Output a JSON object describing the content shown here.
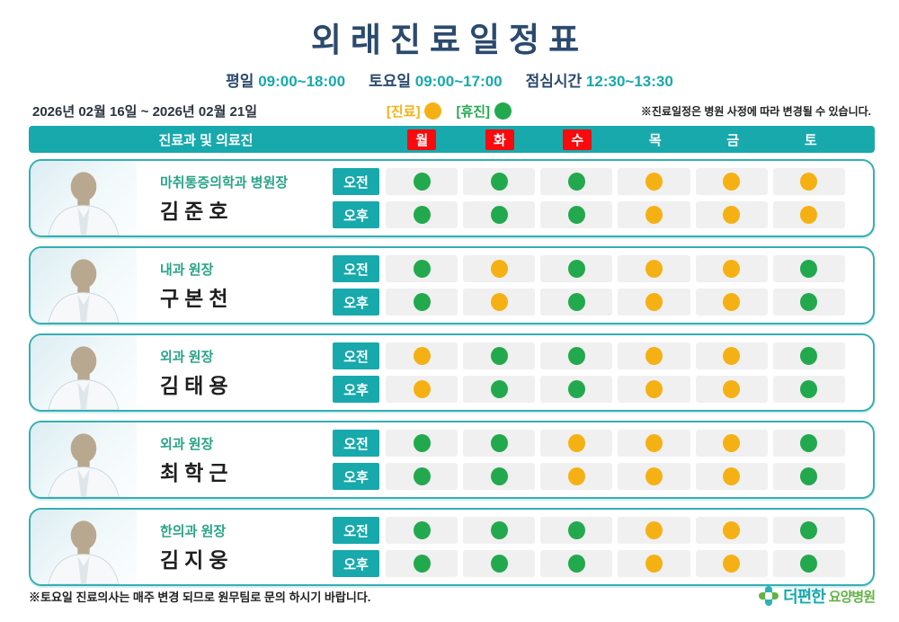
{
  "title": "외래진료일정표",
  "hours": {
    "weekday_label": "평일",
    "weekday_time": "09:00~18:00",
    "saturday_label": "토요일",
    "saturday_time": "09:00~17:00",
    "lunch_label": "점심시간",
    "lunch_time": "12:30~13:30"
  },
  "date_range": "2026년 02월 16일 ~ 2026년 02월 21일",
  "legend": {
    "open_label": "[진료]",
    "closed_label": "[휴진]"
  },
  "notice": "※진료일정은 병원 사정에 따라 변경될 수 있습니다.",
  "table": {
    "staff_header": "진료과 및 의료진",
    "days": [
      {
        "label": "월",
        "highlight": true
      },
      {
        "label": "화",
        "highlight": true
      },
      {
        "label": "수",
        "highlight": true
      },
      {
        "label": "목",
        "highlight": false
      },
      {
        "label": "금",
        "highlight": false
      },
      {
        "label": "토",
        "highlight": false
      }
    ],
    "session_labels": {
      "am": "오전",
      "pm": "오후"
    },
    "rows": [
      {
        "dept": "마취통증의학과 병원장",
        "name": "김준호",
        "am": [
          "휴진",
          "휴진",
          "휴진",
          "진료",
          "진료",
          "진료"
        ],
        "pm": [
          "휴진",
          "휴진",
          "휴진",
          "진료",
          "진료",
          "진료"
        ]
      },
      {
        "dept": "내과 원장",
        "name": "구본천",
        "am": [
          "휴진",
          "진료",
          "휴진",
          "진료",
          "진료",
          "휴진"
        ],
        "pm": [
          "휴진",
          "진료",
          "휴진",
          "진료",
          "진료",
          "휴진"
        ]
      },
      {
        "dept": "외과 원장",
        "name": "김태용",
        "am": [
          "진료",
          "휴진",
          "휴진",
          "진료",
          "진료",
          "휴진"
        ],
        "pm": [
          "진료",
          "휴진",
          "휴진",
          "진료",
          "진료",
          "휴진"
        ]
      },
      {
        "dept": "외과 원장",
        "name": "최학근",
        "am": [
          "휴진",
          "휴진",
          "진료",
          "진료",
          "진료",
          "휴진"
        ],
        "pm": [
          "휴진",
          "휴진",
          "진료",
          "진료",
          "진료",
          "휴진"
        ]
      },
      {
        "dept": "한의과 원장",
        "name": "김지웅",
        "am": [
          "휴진",
          "휴진",
          "휴진",
          "진료",
          "진료",
          "휴진"
        ],
        "pm": [
          "휴진",
          "휴진",
          "휴진",
          "진료",
          "진료",
          "휴진"
        ]
      }
    ]
  },
  "footer": {
    "note": "※토요일 진료의사는 매주 변경 되므로 원무팀로 문의 하시기 바랍니다.",
    "logo_main": "더편한",
    "logo_sub": "요양병원"
  },
  "colors": {
    "open": "#F5B114",
    "closed": "#22A94E",
    "teal": "#17A9AC",
    "red": "#FA0A0C",
    "navy": "#2B4A6E",
    "dept": "#2AA489",
    "logo_green": "#62B346"
  }
}
